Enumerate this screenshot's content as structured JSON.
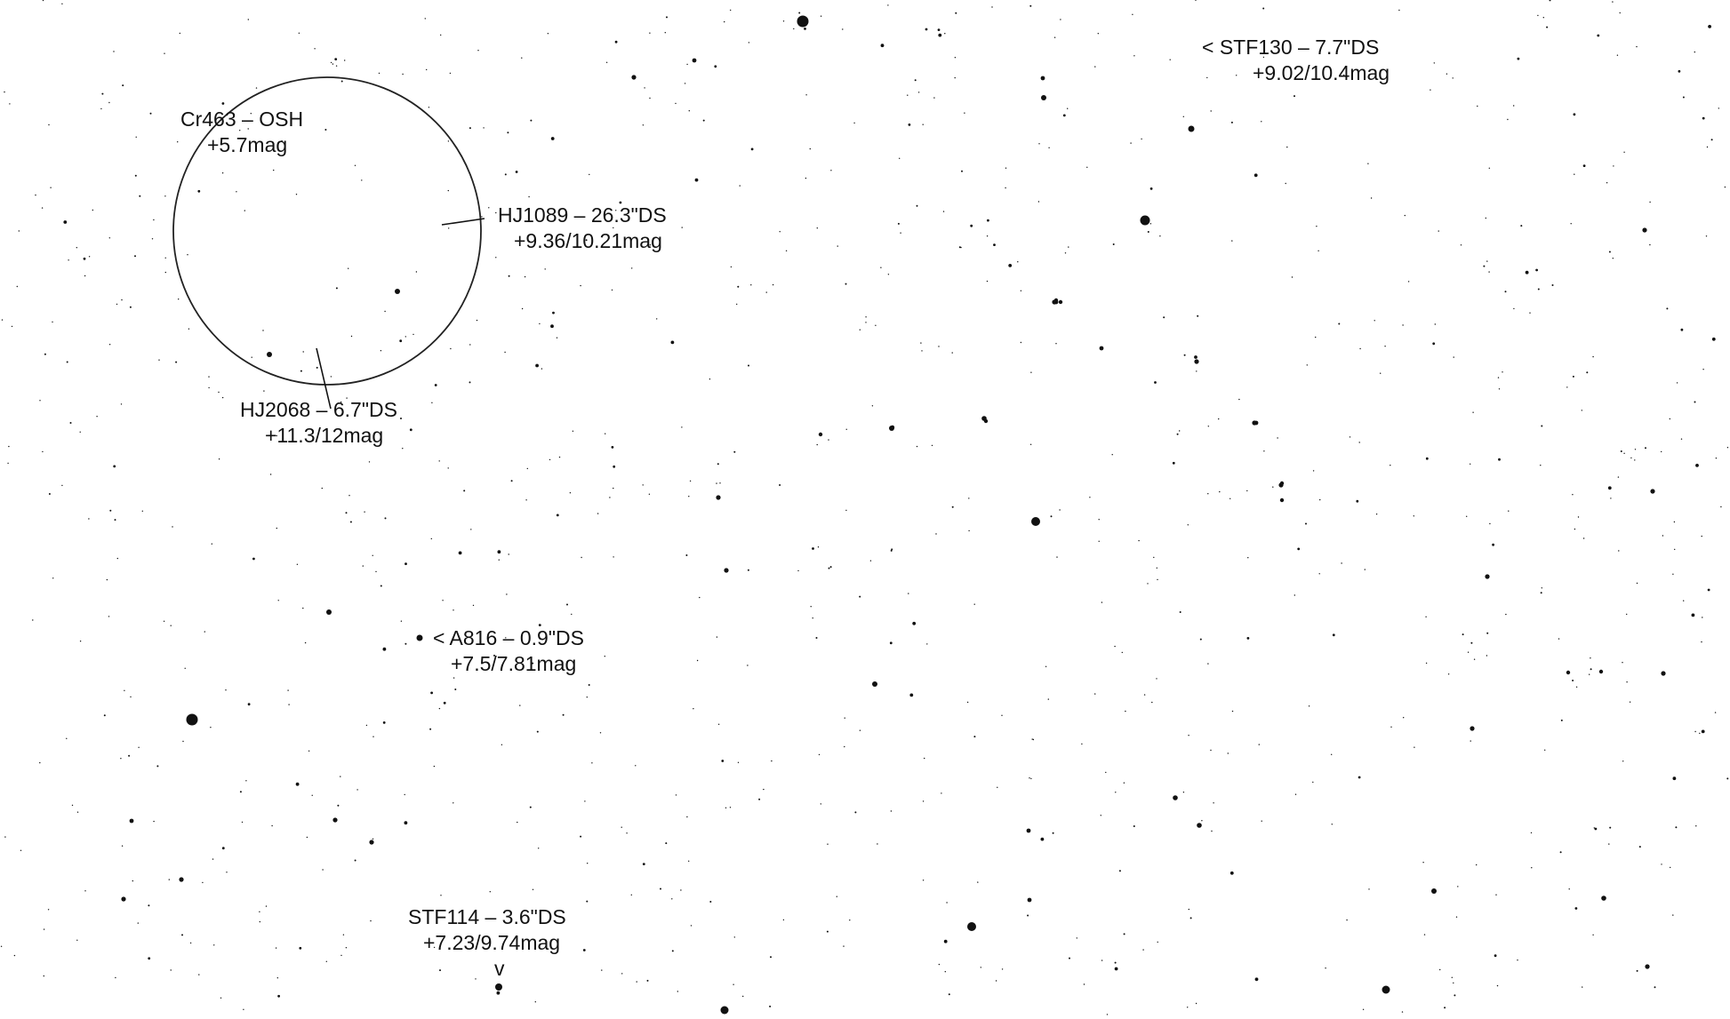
{
  "chart": {
    "background_color": "#ffffff",
    "star_color": "#111111",
    "ink_color": "#111111"
  },
  "annotations": {
    "cr463": {
      "line1": "Cr463 – OSH",
      "line2": "+5.7mag"
    },
    "hj1089": {
      "line1": "HJ1089 – 26.3\"DS",
      "line2": "+9.36/10.21mag"
    },
    "hj2068": {
      "line1": "HJ2068 – 6.7\"DS",
      "line2": "+11.3/12mag"
    },
    "stf130": {
      "line1": "< STF130 – 7.7\"DS",
      "line2": "+9.02/10.4mag"
    },
    "a816": {
      "line1": "< A816 – 0.9\"DS",
      "line2": "+7.5/7.81mag"
    },
    "stf114": {
      "line1": "STF114 – 3.6\"DS",
      "line2": "+7.23/9.74mag",
      "marker": "v"
    }
  }
}
